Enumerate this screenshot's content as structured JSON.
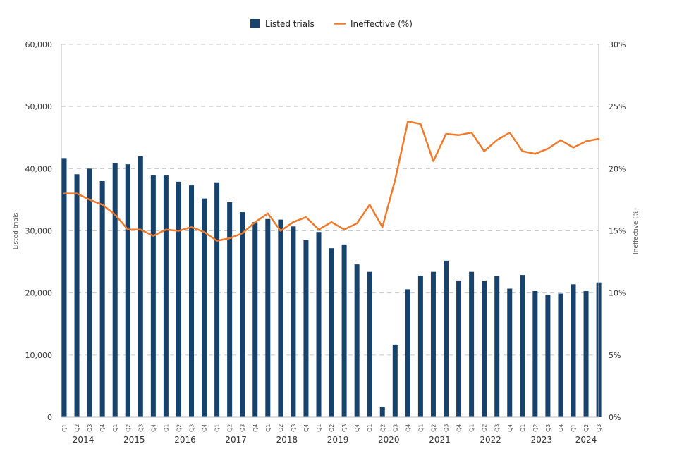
{
  "chart_data": {
    "type": "bar+line",
    "title": "",
    "legend": {
      "position": "top-center",
      "items": [
        {
          "label": "Listed trials",
          "kind": "bar",
          "color": "#17426b"
        },
        {
          "label": "Ineffective (%)",
          "kind": "line",
          "color": "#f07a2c"
        }
      ]
    },
    "ylabel_left": "Listed trials",
    "ylabel_right": "Ineffective (%)",
    "ylim_left": [
      0,
      60000
    ],
    "ylim_right": [
      0,
      30
    ],
    "left_ticks": [
      "0",
      "10,000",
      "20,000",
      "30,000",
      "40,000",
      "50,000",
      "60,000"
    ],
    "right_ticks": [
      "0%",
      "5%",
      "10%",
      "15%",
      "20%",
      "25%",
      "30%"
    ],
    "left_tick_values": [
      0,
      10000,
      20000,
      30000,
      40000,
      50000,
      60000
    ],
    "right_tick_values": [
      0,
      5,
      10,
      15,
      20,
      25,
      30
    ],
    "categories": [
      "Q1",
      "Q2",
      "Q3",
      "Q4",
      "Q1",
      "Q2",
      "Q3",
      "Q4",
      "Q1",
      "Q2",
      "Q3",
      "Q4",
      "Q1",
      "Q2",
      "Q3",
      "Q4",
      "Q1",
      "Q2",
      "Q3",
      "Q4",
      "Q1",
      "Q2",
      "Q3",
      "Q4",
      "Q1",
      "Q2",
      "Q3",
      "Q4",
      "Q1",
      "Q2",
      "Q3",
      "Q4",
      "Q1",
      "Q2",
      "Q3",
      "Q4",
      "Q1",
      "Q2",
      "Q3",
      "Q4",
      "Q1",
      "Q2",
      "Q3"
    ],
    "years": [
      {
        "label": "2014",
        "start": 0,
        "end": 3
      },
      {
        "label": "2015",
        "start": 4,
        "end": 7
      },
      {
        "label": "2016",
        "start": 8,
        "end": 11
      },
      {
        "label": "2017",
        "start": 12,
        "end": 15
      },
      {
        "label": "2018",
        "start": 16,
        "end": 19
      },
      {
        "label": "2019",
        "start": 20,
        "end": 23
      },
      {
        "label": "2020",
        "start": 24,
        "end": 27
      },
      {
        "label": "2021",
        "start": 28,
        "end": 31
      },
      {
        "label": "2022",
        "start": 32,
        "end": 35
      },
      {
        "label": "2023",
        "start": 36,
        "end": 39
      },
      {
        "label": "2024",
        "start": 40,
        "end": 42
      }
    ],
    "series": [
      {
        "name": "Listed trials",
        "axis": "left",
        "type": "bar",
        "color": "#17426b",
        "values": [
          41700,
          39100,
          40000,
          38000,
          40900,
          40700,
          42000,
          38900,
          38900,
          37900,
          37300,
          35200,
          37800,
          34600,
          33000,
          31400,
          31900,
          31800,
          30700,
          28500,
          29800,
          27200,
          27800,
          24600,
          23400,
          1700,
          11700,
          20600,
          22800,
          23400,
          25200,
          21900,
          23400,
          21900,
          22700,
          20700,
          22900,
          20300,
          19700,
          19900,
          21400,
          20300,
          21700
        ]
      },
      {
        "name": "Ineffective (%)",
        "axis": "right",
        "type": "line",
        "color": "#f07a2c",
        "values": [
          18.0,
          18.0,
          17.5,
          17.1,
          16.3,
          15.1,
          15.1,
          14.6,
          15.1,
          15.0,
          15.3,
          14.9,
          14.2,
          14.4,
          14.8,
          15.7,
          16.4,
          15.0,
          15.7,
          16.1,
          15.1,
          15.7,
          15.1,
          15.6,
          17.1,
          15.3,
          19.1,
          23.8,
          23.6,
          20.6,
          22.8,
          22.7,
          22.9,
          21.4,
          22.3,
          22.9,
          21.4,
          21.2,
          21.6,
          22.3,
          21.7,
          22.2,
          22.4
        ]
      }
    ]
  }
}
